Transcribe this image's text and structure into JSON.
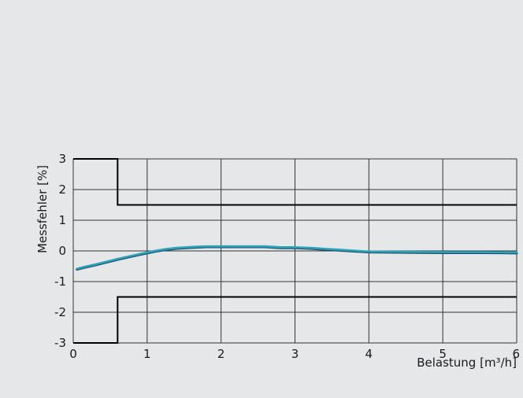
{
  "chart_data": {
    "type": "line",
    "title": "",
    "xlabel": "Belastung [m³/h]",
    "ylabel": "Messfehler [%]",
    "xlim": [
      0,
      6
    ],
    "ylim": [
      -3,
      3
    ],
    "x_ticks": [
      0,
      1,
      2,
      3,
      4,
      5,
      6
    ],
    "y_ticks": [
      3,
      2,
      1,
      0,
      -1,
      -2,
      -3
    ],
    "grid": true,
    "colors": {
      "curve": "#2ba3b8",
      "curve_shadow": "#1a4c70",
      "limits": "#000000",
      "grid": "#333333"
    },
    "series": [
      {
        "x": [
          0.05,
          0.15,
          0.3,
          0.45,
          0.6,
          0.75,
          0.9,
          1.0,
          1.1,
          1.25,
          1.4,
          1.6,
          1.8,
          2.0,
          2.2,
          2.4,
          2.6,
          2.8,
          3.0,
          3.2,
          3.4,
          3.6,
          3.8,
          4.0,
          4.5,
          5.0,
          5.5,
          6.0
        ],
        "values": [
          -0.58,
          -0.52,
          -0.44,
          -0.35,
          -0.26,
          -0.18,
          -0.1,
          -0.05,
          0.0,
          0.06,
          0.1,
          0.13,
          0.15,
          0.15,
          0.15,
          0.15,
          0.15,
          0.12,
          0.12,
          0.1,
          0.07,
          0.04,
          0.01,
          -0.02,
          -0.03,
          -0.04,
          -0.04,
          -0.05
        ]
      }
    ],
    "limits_upper": {
      "x": [
        0,
        0.6,
        0.6,
        6.0
      ],
      "values": [
        3,
        3,
        1.5,
        1.5
      ]
    },
    "limits_lower": {
      "x": [
        0,
        0.6,
        0.6,
        6.0
      ],
      "values": [
        -3,
        -3,
        -1.5,
        -1.5
      ]
    }
  }
}
